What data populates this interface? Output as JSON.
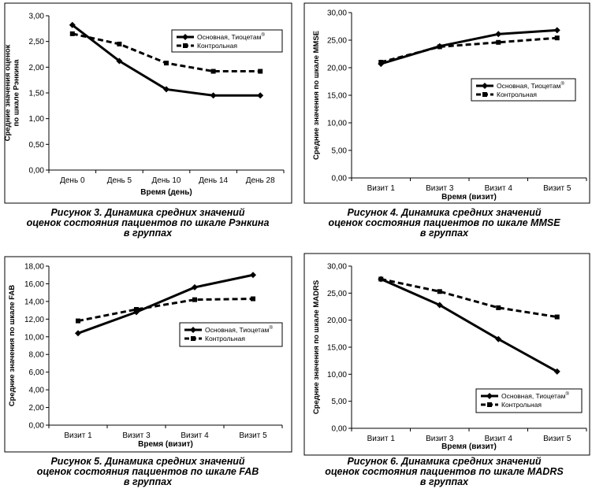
{
  "chart_data": [
    {
      "type": "line",
      "ylabel": "Средние значения оценок по шкале Рэнкина",
      "xlabel": "Время (день)",
      "categories": [
        "День 0",
        "День 5",
        "День 10",
        "День 14",
        "День 28"
      ],
      "ylim": [
        0,
        3
      ],
      "yticks": [
        "0,00",
        "0,50",
        "1,00",
        "1,50",
        "2,00",
        "2,50",
        "3,00"
      ],
      "grid": false,
      "legend_position": "top-right",
      "series": [
        {
          "name": "Основная, Тиоцетам",
          "sup": "®",
          "style": "solid",
          "values": [
            2.82,
            2.12,
            1.57,
            1.45,
            1.45
          ]
        },
        {
          "name": "Контрольная",
          "sup": "",
          "style": "dashed",
          "values": [
            2.65,
            2.45,
            2.08,
            1.92,
            1.92
          ]
        }
      ],
      "caption": [
        "Рисунок 3. Динамика средних значений",
        "оценок состояния пациентов по шкале Рэнкина",
        "в группах"
      ]
    },
    {
      "type": "line",
      "ylabel": "Средние значения по шкале MMSE",
      "xlabel": "Время (визит)",
      "categories": [
        "Визит 1",
        "Визит 3",
        "Визит 4",
        "Визит 5"
      ],
      "ylim": [
        0,
        30
      ],
      "yticks": [
        "0,00",
        "5,00",
        "10,00",
        "15,00",
        "20,00",
        "25,00",
        "30,00"
      ],
      "grid": false,
      "legend_position": "center-right",
      "series": [
        {
          "name": "Основная, Тиоцетам",
          "sup": "®",
          "style": "solid",
          "values": [
            20.7,
            23.9,
            26.1,
            26.8
          ]
        },
        {
          "name": "Контрольная",
          "sup": "",
          "style": "dashed",
          "values": [
            21.0,
            23.8,
            24.6,
            25.4
          ]
        }
      ],
      "caption": [
        "Рисунок 4. Динамика средних значений",
        "оценок состояния пациентов по шкале MMSE",
        "в группах"
      ]
    },
    {
      "type": "line",
      "ylabel": "Средние значения по шкале FAB",
      "xlabel": "Время (визит)",
      "categories": [
        "Визит 1",
        "Визит 3",
        "Визит 4",
        "Визит 5"
      ],
      "ylim": [
        0,
        18
      ],
      "yticks": [
        "0,00",
        "2,00",
        "4,00",
        "6,00",
        "8,00",
        "10,00",
        "12,00",
        "14,00",
        "16,00",
        "18,00"
      ],
      "grid": false,
      "legend_position": "center-right",
      "series": [
        {
          "name": "Основная, Тиоцетам",
          "sup": "®",
          "style": "solid",
          "values": [
            10.4,
            12.8,
            15.6,
            17.0
          ]
        },
        {
          "name": "Контрольная",
          "sup": "",
          "style": "dashed",
          "values": [
            11.8,
            13.1,
            14.2,
            14.3
          ]
        }
      ],
      "caption": [
        "Рисунок 5. Динамика средних значений",
        "оценок состояния пациентов по шкале FAB",
        "в группах"
      ]
    },
    {
      "type": "line",
      "ylabel": "Средние значения по шкале MADRS",
      "xlabel": "Время (визит)",
      "categories": [
        "Визит 1",
        "Визит 3",
        "Визит 4",
        "Визит 5"
      ],
      "ylim": [
        0,
        30
      ],
      "yticks": [
        "0,00",
        "5,00",
        "10,00",
        "15,00",
        "20,00",
        "25,00",
        "30,00"
      ],
      "grid": false,
      "legend_position": "bottom-right",
      "series": [
        {
          "name": "Основная, Тиоцетам",
          "sup": "®",
          "style": "solid",
          "values": [
            27.6,
            22.8,
            16.5,
            10.5
          ]
        },
        {
          "name": "Контрольная",
          "sup": "",
          "style": "dashed",
          "values": [
            27.6,
            25.3,
            22.3,
            20.6
          ]
        }
      ],
      "caption": [
        "Рисунок 6. Динамика средних значений",
        "оценок состояния пациентов по шкале MADRS",
        "в группах"
      ]
    }
  ]
}
